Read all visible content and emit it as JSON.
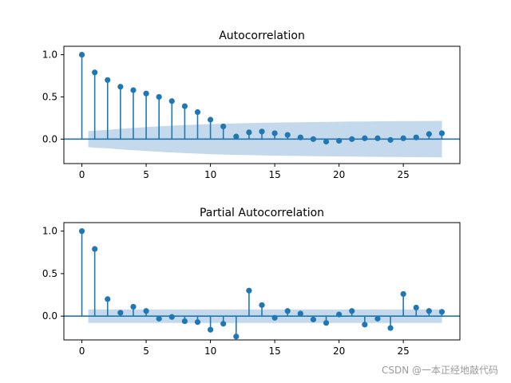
{
  "chart_data": [
    {
      "type": "stem",
      "title": "Autocorrelation",
      "lags": [
        0,
        1,
        2,
        3,
        4,
        5,
        6,
        7,
        8,
        9,
        10,
        11,
        12,
        13,
        14,
        15,
        16,
        17,
        18,
        19,
        20,
        21,
        22,
        23,
        24,
        25,
        26,
        27,
        28
      ],
      "values": [
        1.0,
        0.79,
        0.7,
        0.62,
        0.58,
        0.54,
        0.5,
        0.45,
        0.39,
        0.32,
        0.23,
        0.15,
        0.03,
        0.08,
        0.09,
        0.07,
        0.05,
        0.02,
        0.0,
        -0.03,
        -0.02,
        0.0,
        0.01,
        0.01,
        -0.01,
        0.01,
        0.02,
        0.06,
        0.07
      ],
      "confidence_band": [
        0.08,
        0.096,
        0.11,
        0.122,
        0.132,
        0.142,
        0.151,
        0.159,
        0.166,
        0.172,
        0.178,
        0.183,
        0.187,
        0.19,
        0.193,
        0.196,
        0.198,
        0.2,
        0.202,
        0.204,
        0.206,
        0.208,
        0.209,
        0.211,
        0.212,
        0.213,
        0.214,
        0.215,
        0.216
      ],
      "xlim": [
        -1.4,
        29.4
      ],
      "ylim": [
        -0.29,
        1.1
      ],
      "xticks": [
        "0",
        "5",
        "10",
        "15",
        "20",
        "25"
      ],
      "yticks": [
        "0.0",
        "0.5",
        "1.0"
      ],
      "color": "#1f77b4",
      "band_color": "#c5d9ec"
    },
    {
      "type": "stem",
      "title": "Partial Autocorrelation",
      "lags": [
        0,
        1,
        2,
        3,
        4,
        5,
        6,
        7,
        8,
        9,
        10,
        11,
        12,
        13,
        14,
        15,
        16,
        17,
        18,
        19,
        20,
        21,
        22,
        23,
        24,
        25,
        26,
        27,
        28
      ],
      "values": [
        1.0,
        0.79,
        0.2,
        0.04,
        0.11,
        0.06,
        -0.03,
        -0.01,
        -0.06,
        -0.07,
        -0.16,
        -0.09,
        -0.24,
        0.3,
        0.13,
        -0.02,
        0.06,
        0.03,
        -0.04,
        -0.08,
        0.02,
        0.06,
        -0.1,
        -0.03,
        -0.14,
        0.26,
        0.1,
        0.06,
        0.05
      ],
      "confidence_band": [
        0.08,
        0.08,
        0.08,
        0.08,
        0.08,
        0.08,
        0.08,
        0.08,
        0.08,
        0.08,
        0.08,
        0.08,
        0.08,
        0.08,
        0.08,
        0.08,
        0.08,
        0.08,
        0.08,
        0.08,
        0.08,
        0.08,
        0.08,
        0.08,
        0.08,
        0.08,
        0.08,
        0.08,
        0.08
      ],
      "xlim": [
        -1.4,
        29.4
      ],
      "ylim": [
        -0.28,
        1.1
      ],
      "xticks": [
        "0",
        "5",
        "10",
        "15",
        "20",
        "25"
      ],
      "yticks": [
        "0.0",
        "0.5",
        "1.0"
      ],
      "color": "#1f77b4",
      "band_color": "#c5d9ec"
    }
  ],
  "watermark": "CSDN @一本正经地敲代码"
}
